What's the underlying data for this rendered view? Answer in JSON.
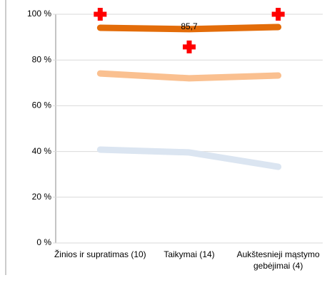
{
  "chart_data": {
    "type": "line",
    "categories": [
      "Žinios ir supratimas (10)",
      "Taikymai (14)",
      "Aukštesnieji mąstymo gebėjimai (4)"
    ],
    "series": [
      {
        "color": "#dbe5f1",
        "values": [
          40.8,
          39.6,
          33.3
        ],
        "marker": "none",
        "width": 9
      },
      {
        "color": "#fac090",
        "values": [
          74.1,
          72.0,
          73.2
        ],
        "marker": "none",
        "width": 9
      },
      {
        "color": "#e36c09",
        "values": [
          94.1,
          93.5,
          94.4
        ],
        "marker": "none",
        "width": 9
      },
      {
        "color": "#ff0000",
        "values": [
          100,
          85.7,
          100
        ],
        "marker": "plus",
        "width": 0,
        "value_labels": [
          null,
          "85,7",
          null
        ]
      }
    ],
    "ylim": [
      0,
      100
    ],
    "yticks": [
      {
        "value": 0,
        "label": "0 %"
      },
      {
        "value": 20,
        "label": "20 %"
      },
      {
        "value": 40,
        "label": "40 %"
      },
      {
        "value": 60,
        "label": "60 %"
      },
      {
        "value": 80,
        "label": "80 %"
      },
      {
        "value": 100,
        "label": "100 %"
      }
    ],
    "grid": true
  }
}
